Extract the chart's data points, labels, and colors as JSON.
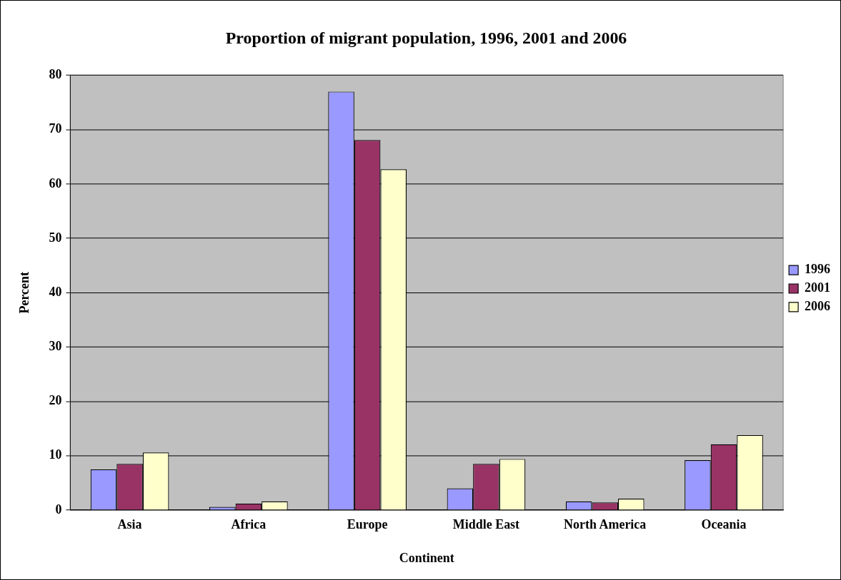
{
  "chart_data": {
    "type": "bar",
    "title": "Proportion of migrant population, 1996, 2001 and 2006",
    "xlabel": "Continent",
    "ylabel": "Percent",
    "categories": [
      "Asia",
      "Africa",
      "Europe",
      "Middle East",
      "North America",
      "Oceania"
    ],
    "series": [
      {
        "name": "1996",
        "color": "#9999ff",
        "values": [
          7.5,
          0.6,
          77,
          4.0,
          1.6,
          9.2
        ]
      },
      {
        "name": "2001",
        "color": "#993366",
        "values": [
          8.5,
          1.2,
          68.1,
          8.5,
          1.4,
          12.1
        ]
      },
      {
        "name": "2006",
        "color": "#ffffcc",
        "values": [
          10.6,
          1.6,
          62.7,
          9.4,
          2.1,
          13.8
        ]
      }
    ],
    "ylim": [
      0,
      80
    ],
    "yticks": [
      0,
      10,
      20,
      30,
      40,
      50,
      60,
      70,
      80
    ],
    "grid": "y",
    "legend": "right"
  }
}
